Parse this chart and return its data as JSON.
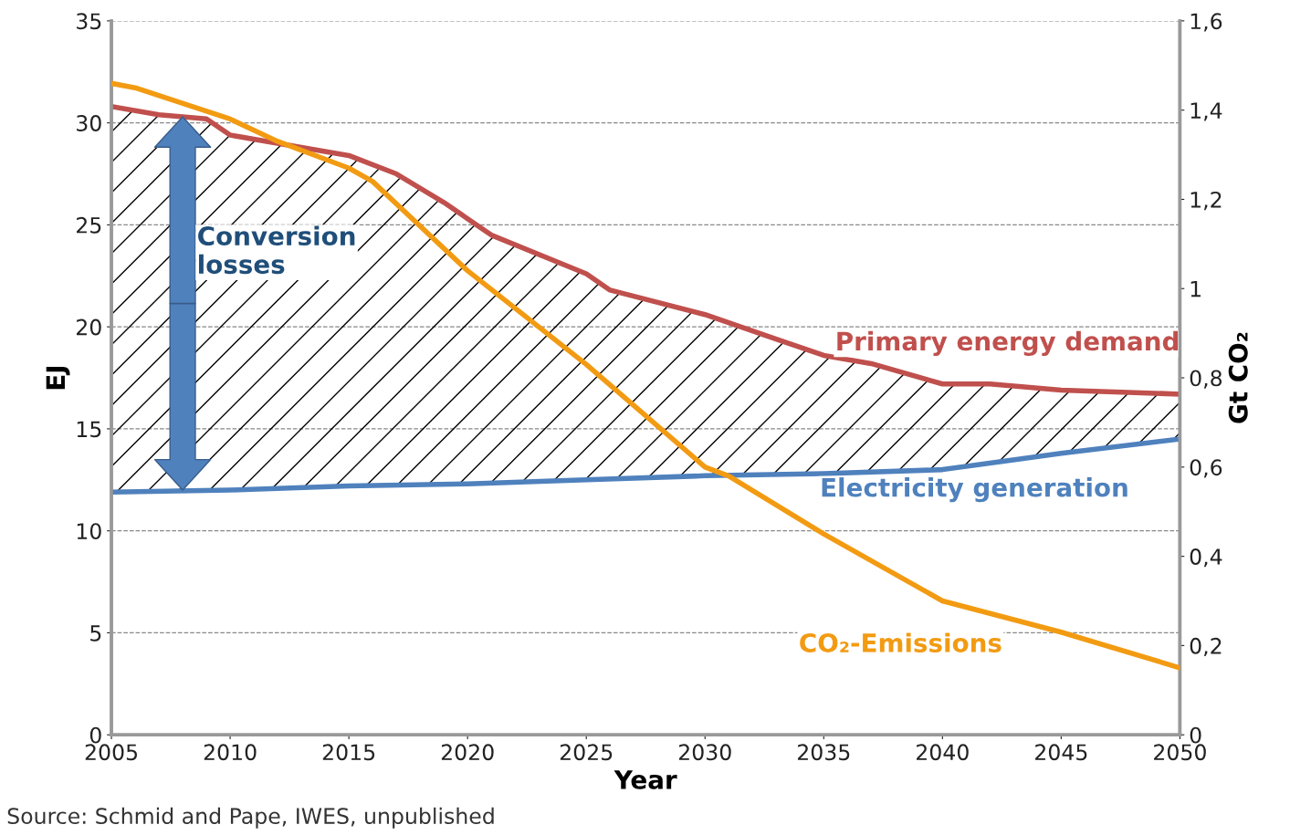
{
  "chart_data": {
    "type": "line",
    "xlabel": "Year",
    "ylabel": "EJ",
    "y2label": "Gt CO₂",
    "xlim": [
      2005,
      2050
    ],
    "xticks": [
      2005,
      2010,
      2015,
      2020,
      2025,
      2030,
      2035,
      2040,
      2045,
      2050
    ],
    "ylim": [
      0,
      35
    ],
    "yticks": [
      0,
      5,
      10,
      15,
      20,
      25,
      30,
      35
    ],
    "y2lim": [
      0,
      1.6
    ],
    "y2ticks": [
      0,
      {
        "value": 0.2,
        "label": "0,2"
      },
      {
        "value": 0.4,
        "label": "0,4"
      },
      {
        "value": 0.6,
        "label": "0,6"
      },
      {
        "value": 0.8,
        "label": "0,8"
      },
      1,
      {
        "value": 1.2,
        "label": "1,2"
      },
      {
        "value": 1.4,
        "label": "1,4"
      },
      {
        "value": 1.6,
        "label": "1,6"
      }
    ],
    "grid": "y",
    "legend": false,
    "line_style": "solid",
    "series": [
      {
        "name": "Primary energy demand",
        "color": "#c0504d",
        "x": [
          2005,
          2007,
          2009,
          2010,
          2015,
          2017,
          2019,
          2020,
          2021,
          2025,
          2026,
          2030,
          2033,
          2035,
          2037,
          2040,
          2042,
          2045,
          2050
        ],
        "values": [
          30.8,
          30.4,
          30.2,
          29.4,
          28.4,
          27.5,
          26.1,
          25.3,
          24.5,
          22.6,
          21.8,
          20.6,
          19.4,
          18.6,
          18.2,
          17.2,
          17.2,
          16.9,
          16.7
        ],
        "lower": [
          11.9,
          12.0,
          12.0,
          12.0,
          12.2,
          12.2,
          12.3,
          12.3,
          12.3,
          12.5,
          12.5,
          12.7,
          12.8,
          12.8,
          12.9,
          13.0,
          13.3,
          13.8,
          14.5
        ],
        "upper": [
          30.8,
          30.4,
          30.2,
          29.4,
          28.4,
          27.5,
          26.1,
          25.3,
          24.5,
          22.6,
          21.8,
          20.6,
          19.4,
          18.6,
          18.2,
          17.2,
          17.2,
          16.9,
          16.7
        ]
      },
      {
        "name": "Electricity generation",
        "color": "#4f81bd",
        "x": [
          2005,
          2010,
          2015,
          2020,
          2025,
          2030,
          2035,
          2040,
          2045,
          2050
        ],
        "values": [
          11.9,
          12.0,
          12.2,
          12.3,
          12.5,
          12.7,
          12.8,
          13.0,
          13.8,
          14.5
        ]
      },
      {
        "name": "CO₂-Emissions",
        "color": "#f29b12",
        "axis": "y2",
        "x": [
          2005,
          2006,
          2010,
          2012,
          2015,
          2016,
          2020,
          2025,
          2030,
          2031,
          2035,
          2040,
          2045,
          2050
        ],
        "values": [
          1.46,
          1.45,
          1.38,
          1.33,
          1.27,
          1.24,
          1.04,
          0.83,
          0.6,
          0.58,
          0.45,
          0.3,
          0.23,
          0.15
        ]
      }
    ],
    "annotations": [
      "Conversion losses",
      "Source: Schmid and Pape, IWES, unpublished"
    ]
  }
}
